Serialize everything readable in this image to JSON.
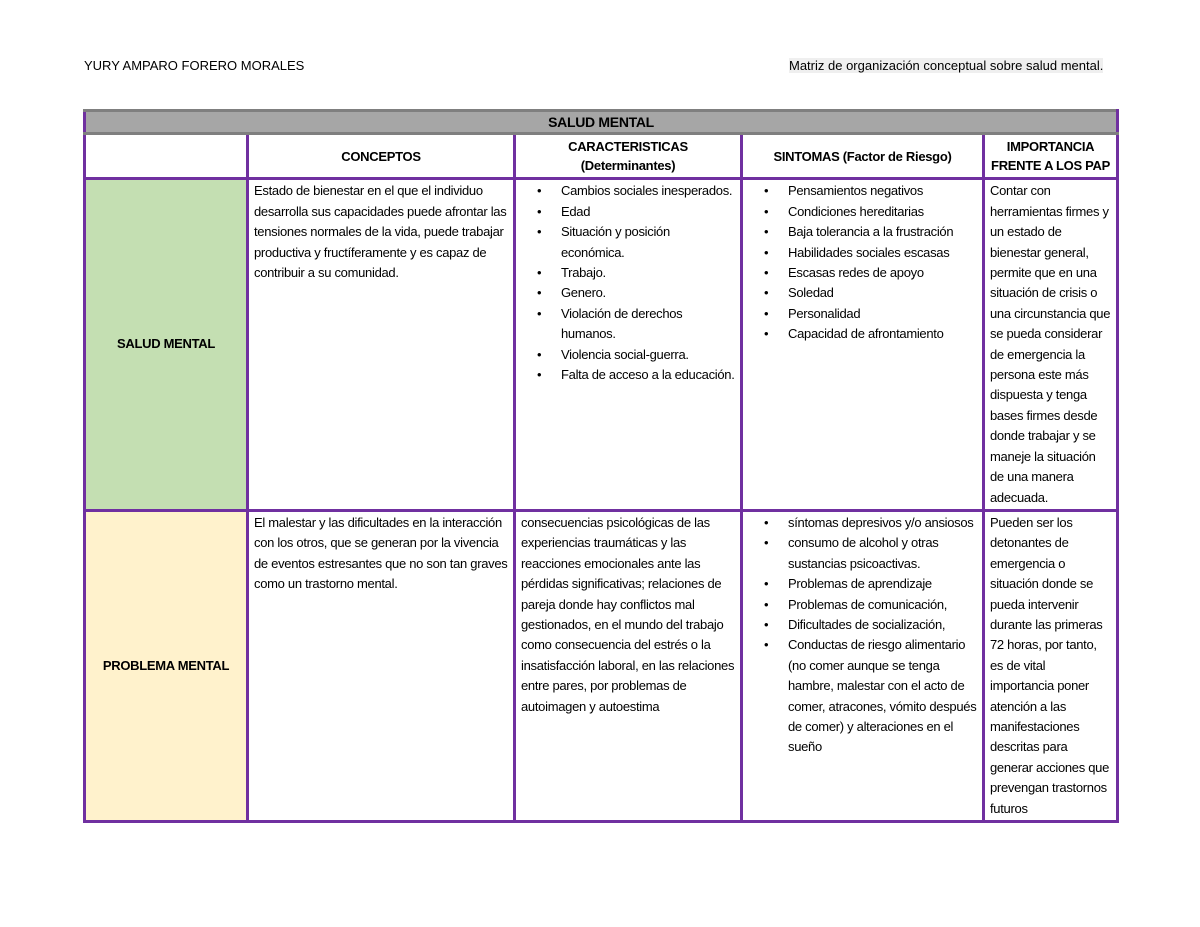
{
  "header": {
    "author": "YURY AMPARO FORERO MORALES",
    "subtitle": "Matriz de organización conceptual sobre salud mental."
  },
  "table": {
    "title": "SALUD MENTAL",
    "columns": [
      "",
      "CONCEPTOS",
      "CARACTERISTICAS (Determinantes)",
      "SINTOMAS (Factor de Riesgo)",
      "IMPORTANCIA FRENTE A LOS PAP"
    ],
    "rows": [
      {
        "label": "SALUD MENTAL",
        "color": "#c4dfb2",
        "concepto": "Estado de bienestar en el que el individuo desarrolla sus capacidades puede afrontar las tensiones normales de la vida, puede trabajar productiva y fructíferamente y es capaz de contribuir a su comunidad.",
        "caracteristicas": [
          "Cambios sociales inesperados.",
          "Edad",
          "Situación y posición económica.",
          "Trabajo.",
          "Genero.",
          "Violación de derechos humanos.",
          "Violencia social-guerra.",
          "Falta de acceso a la educación."
        ],
        "sintomas": [
          "Pensamientos negativos",
          "Condiciones hereditarias",
          "Baja tolerancia a la frustración",
          "Habilidades sociales escasas",
          "Escasas redes de apoyo",
          "Soledad",
          "Personalidad",
          "Capacidad de afrontamiento"
        ],
        "importancia": "Contar con herramientas firmes y un estado de bienestar general, permite que en una situación de crisis o una circunstancia que se pueda considerar de emergencia la persona este más dispuesta y tenga bases firmes desde donde trabajar y se maneje la situación de una manera adecuada."
      },
      {
        "label": "PROBLEMA MENTAL",
        "color": "#fff2cc",
        "concepto": "El malestar y las dificultades en la interacción con los otros, que se generan por la vivencia de eventos estresantes que no son tan graves como un trastorno mental.",
        "caracteristicas_text": "consecuencias psicológicas de las experiencias traumáticas y las reacciones emocionales ante las pérdidas significativas; relaciones de pareja donde hay conflictos mal gestionados, en el mundo del trabajo como consecuencia del estrés o la insatisfacción laboral, en las relaciones entre pares, por problemas de autoimagen y autoestima",
        "sintomas": [
          "síntomas depresivos y/o ansiosos",
          "consumo de alcohol y otras sustancias psicoactivas.",
          "Problemas de aprendizaje",
          "Problemas de comunicación,",
          "Dificultades de socialización,",
          "Conductas de riesgo alimentario (no comer aunque se tenga hambre, malestar con el acto de comer, atracones, vómito después de comer) y alteraciones en el sueño"
        ],
        "importancia": "Pueden ser los detonantes de emergencia o situación donde se pueda intervenir durante las primeras 72 horas, por tanto, es de vital importancia poner atención a las manifestaciones descritas para generar acciones que prevengan trastornos futuros"
      }
    ]
  }
}
